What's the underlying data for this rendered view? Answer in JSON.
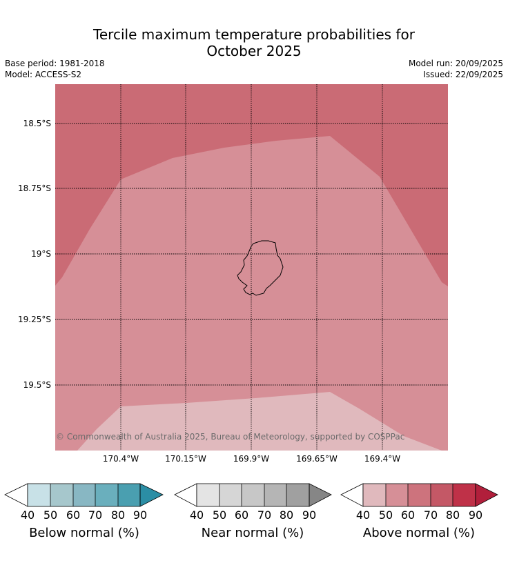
{
  "title_line1": "Tercile maximum temperature probabilities for",
  "title_line2": "October 2025",
  "base_period": "Base period: 1981-2018",
  "model": "Model: ACCESS-S2",
  "model_run": "Model run: 20/09/2025",
  "issued": "Issued: 22/09/2025",
  "map": {
    "latitude_labels": [
      "18.5°S",
      "18.75°S",
      "19°S",
      "19.25°S",
      "19.5°S"
    ],
    "longitude_labels": [
      "170.4°W",
      "170.15°W",
      "169.9°W",
      "169.65°W",
      "169.4°W"
    ],
    "copyright": "© Commonwealth of Australia 2025, Bureau of Meteorology, supported by COSPPac",
    "region_categories": {
      "outer_band": "Above normal 60-70%",
      "central_band": "Above normal 50-60%",
      "lower_band": "Above normal 40-50%"
    },
    "colors": {
      "above_40_50": "#e0b9bd",
      "above_50_60": "#d68f97",
      "above_60_70": "#ca6b75"
    }
  },
  "colorbars": [
    {
      "title": "Below normal (%)",
      "ticks": [
        "40",
        "50",
        "60",
        "70",
        "80",
        "90"
      ],
      "colors": [
        "#c8e1e7",
        "#a6c7cc",
        "#88b7c3",
        "#6aafbd",
        "#4a9fb0",
        "#2b8ea5"
      ]
    },
    {
      "title": "Near normal (%)",
      "ticks": [
        "40",
        "50",
        "60",
        "70",
        "80",
        "90"
      ],
      "colors": [
        "#e4e4e4",
        "#d6d6d6",
        "#c7c7c7",
        "#b5b5b5",
        "#a0a0a0",
        "#868686"
      ]
    },
    {
      "title": "Above normal (%)",
      "ticks": [
        "40",
        "50",
        "60",
        "70",
        "80",
        "90"
      ],
      "colors": [
        "#e0b9bd",
        "#d68f97",
        "#cd737d",
        "#c45866",
        "#bf3148",
        "#b11f3b"
      ]
    }
  ]
}
